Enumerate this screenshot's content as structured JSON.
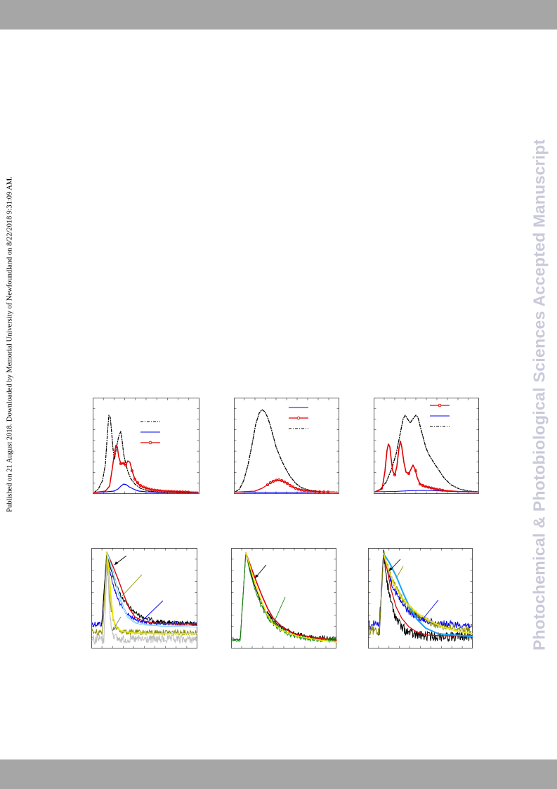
{
  "header": {
    "color": "#a6a6a6"
  },
  "footer": {
    "color": "#a6a6a6"
  },
  "side_note": "Published on 21 August 2018. Downloaded by Memorial University of Newfoundland on 8/22/2018 9:31:09 AM.",
  "watermark": "Photochemical & Photobiological Sciences Accepted Manuscript",
  "figure": {
    "note": "Six spectra/decay panels with no readable labels",
    "series_colors": {
      "black": "#000000",
      "blue": "#0000ee",
      "red": "#e00000",
      "yellow": "#e6e600",
      "olive": "#8a8a00",
      "grey": "#bdbdbd",
      "green": "#138a13",
      "light_blue": "#19a4ff"
    }
  }
}
